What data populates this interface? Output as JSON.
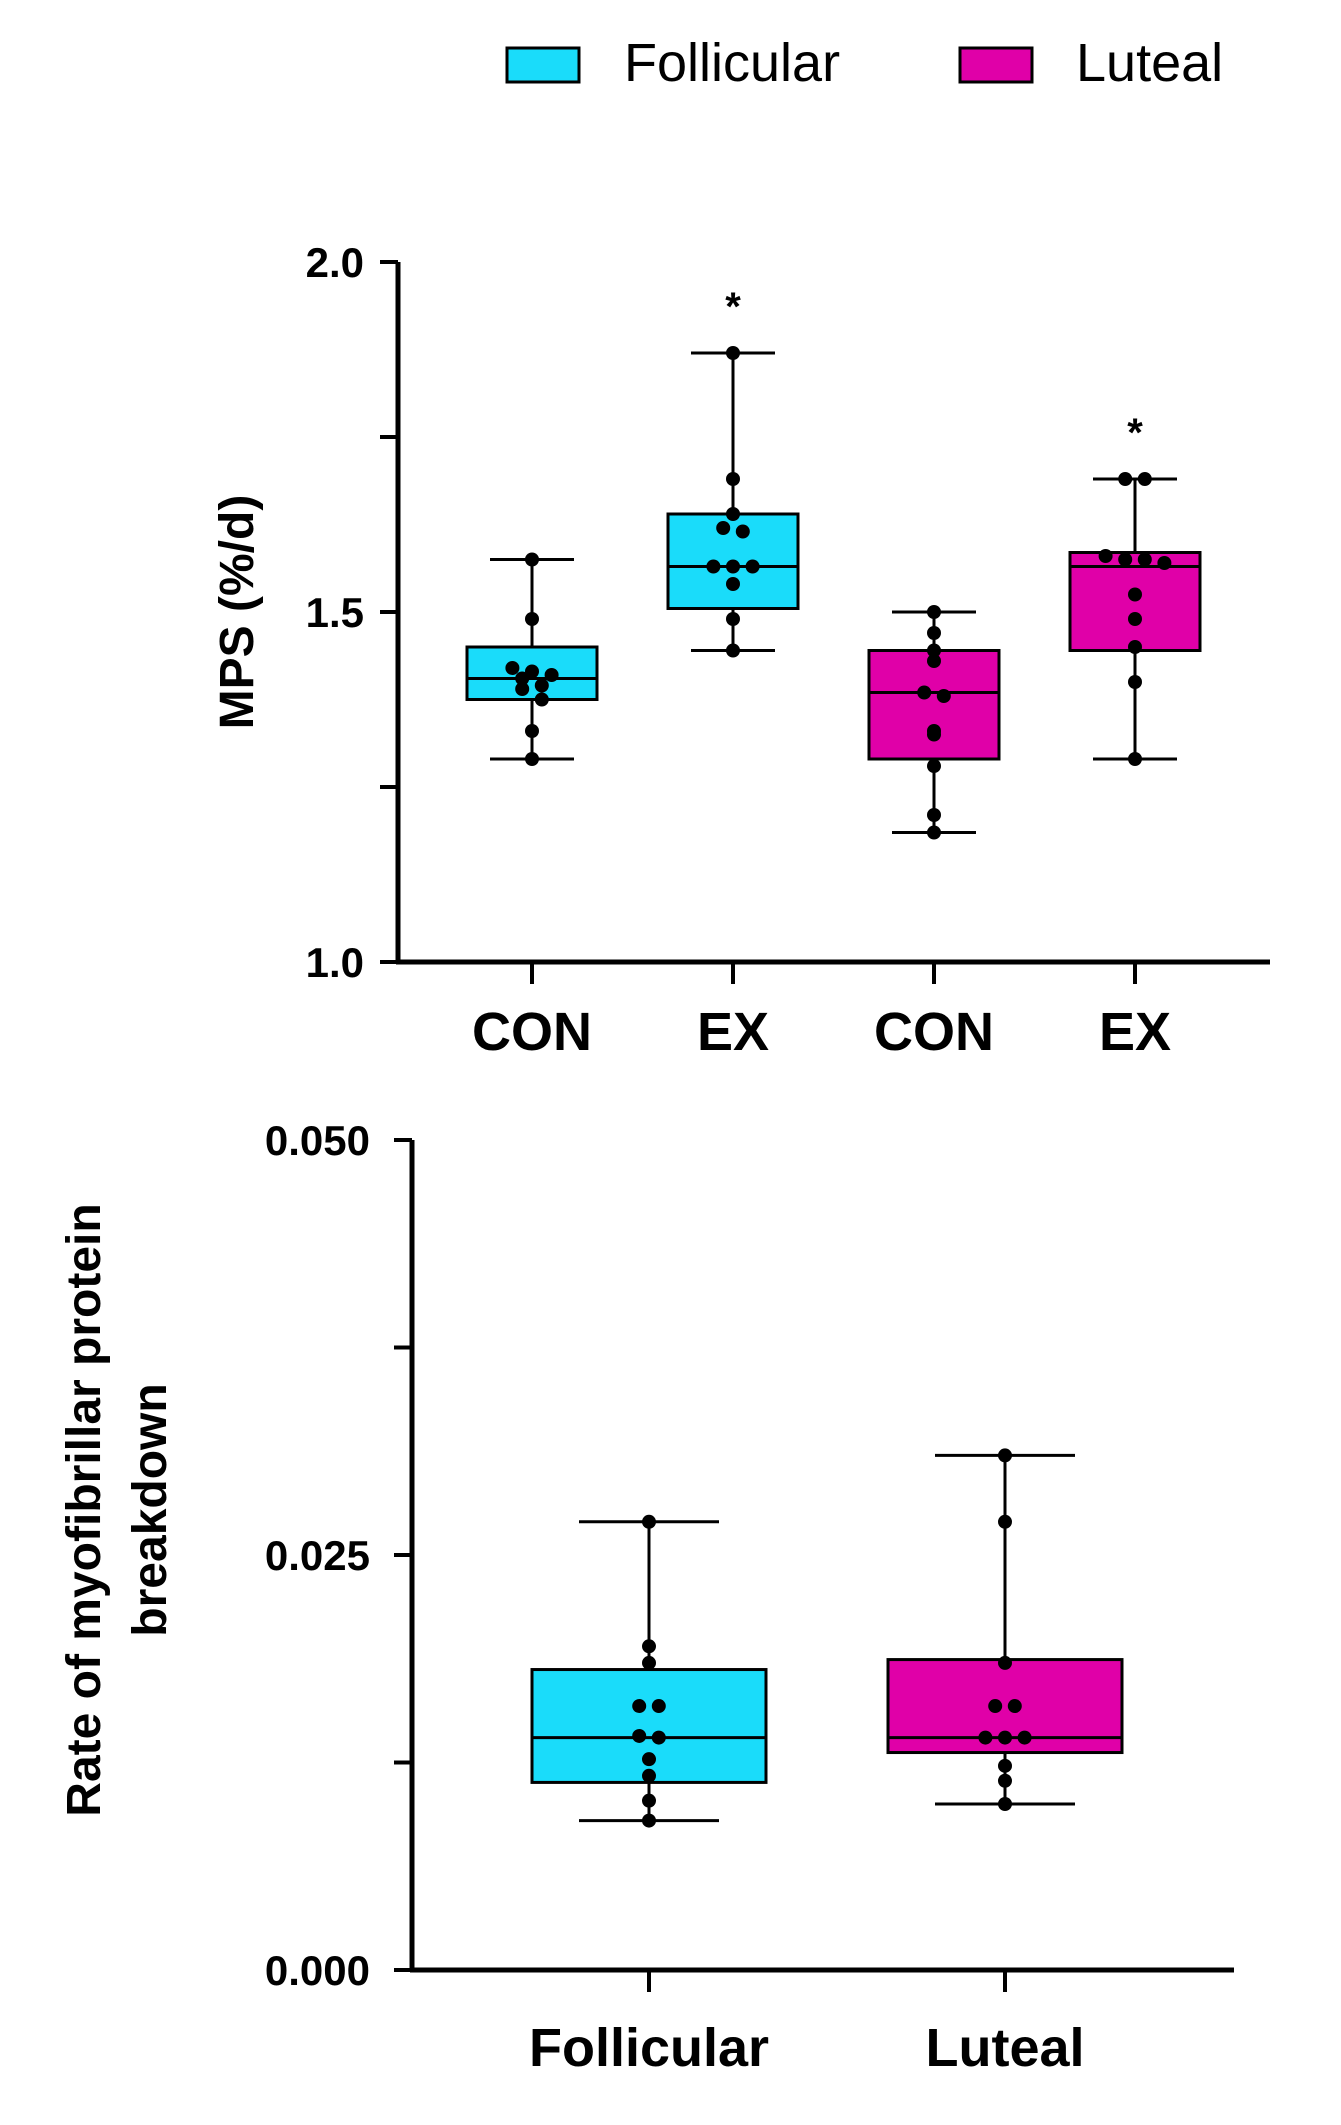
{
  "colors": {
    "follicular": "#1ADCFA",
    "luteal": "#E000A8",
    "ink": "#000000"
  },
  "legend": [
    {
      "label": "Follicular",
      "color": "#1ADCFA"
    },
    {
      "label": "Luteal",
      "color": "#E000A8"
    }
  ],
  "chart_data": [
    {
      "type": "box",
      "ylabel": "MPS (%/d)",
      "ylim": [
        1.0,
        2.0
      ],
      "yticks": [
        {
          "value": 1.0,
          "label": "1.0"
        },
        {
          "value": 1.25,
          "label": ""
        },
        {
          "value": 1.5,
          "label": "1.5"
        },
        {
          "value": 1.75,
          "label": ""
        },
        {
          "value": 2.0,
          "label": "2.0"
        }
      ],
      "groups": [
        {
          "label": "CON",
          "phase": "Follicular",
          "min": 1.29,
          "q1": 1.375,
          "median": 1.405,
          "q3": 1.45,
          "max": 1.575,
          "annotation": "",
          "points": [
            1.575,
            1.49,
            1.42,
            1.415,
            1.41,
            1.405,
            1.395,
            1.39,
            1.375,
            1.33,
            1.29
          ]
        },
        {
          "label": "EX",
          "phase": "Follicular",
          "min": 1.445,
          "q1": 1.505,
          "median": 1.565,
          "q3": 1.64,
          "max": 1.87,
          "annotation": "*",
          "points": [
            1.87,
            1.69,
            1.64,
            1.62,
            1.615,
            1.565,
            1.565,
            1.565,
            1.54,
            1.49,
            1.445
          ]
        },
        {
          "label": "CON",
          "phase": "Luteal",
          "min": 1.185,
          "q1": 1.29,
          "median": 1.385,
          "q3": 1.445,
          "max": 1.5,
          "annotation": "",
          "points": [
            1.5,
            1.47,
            1.445,
            1.43,
            1.385,
            1.38,
            1.33,
            1.325,
            1.28,
            1.21,
            1.185
          ]
        },
        {
          "label": "EX",
          "phase": "Luteal",
          "min": 1.29,
          "q1": 1.445,
          "median": 1.565,
          "q3": 1.585,
          "max": 1.69,
          "annotation": "*",
          "points": [
            1.69,
            1.69,
            1.58,
            1.575,
            1.575,
            1.57,
            1.525,
            1.49,
            1.45,
            1.4,
            1.29
          ]
        }
      ]
    },
    {
      "type": "box",
      "ylabel": "Rate of myofibrillar protein breakdown",
      "ylim": [
        0.0,
        0.05
      ],
      "yticks": [
        {
          "value": 0.0,
          "label": "0.000"
        },
        {
          "value": 0.0125,
          "label": ""
        },
        {
          "value": 0.025,
          "label": "0.025"
        },
        {
          "value": 0.0375,
          "label": ""
        },
        {
          "value": 0.05,
          "label": "0.050"
        }
      ],
      "groups": [
        {
          "label": "Follicular",
          "phase": "Follicular",
          "min": 0.009,
          "q1": 0.0113,
          "median": 0.014,
          "q3": 0.0181,
          "max": 0.027,
          "annotation": "",
          "points": [
            0.027,
            0.0195,
            0.0185,
            0.0159,
            0.0159,
            0.0141,
            0.014,
            0.0127,
            0.0117,
            0.0102,
            0.009
          ]
        },
        {
          "label": "Luteal",
          "phase": "Luteal",
          "min": 0.01,
          "q1": 0.0131,
          "median": 0.014,
          "q3": 0.0187,
          "max": 0.031,
          "annotation": "",
          "points": [
            0.031,
            0.027,
            0.0185,
            0.0159,
            0.0159,
            0.014,
            0.014,
            0.014,
            0.0123,
            0.0114,
            0.01
          ]
        }
      ]
    }
  ]
}
